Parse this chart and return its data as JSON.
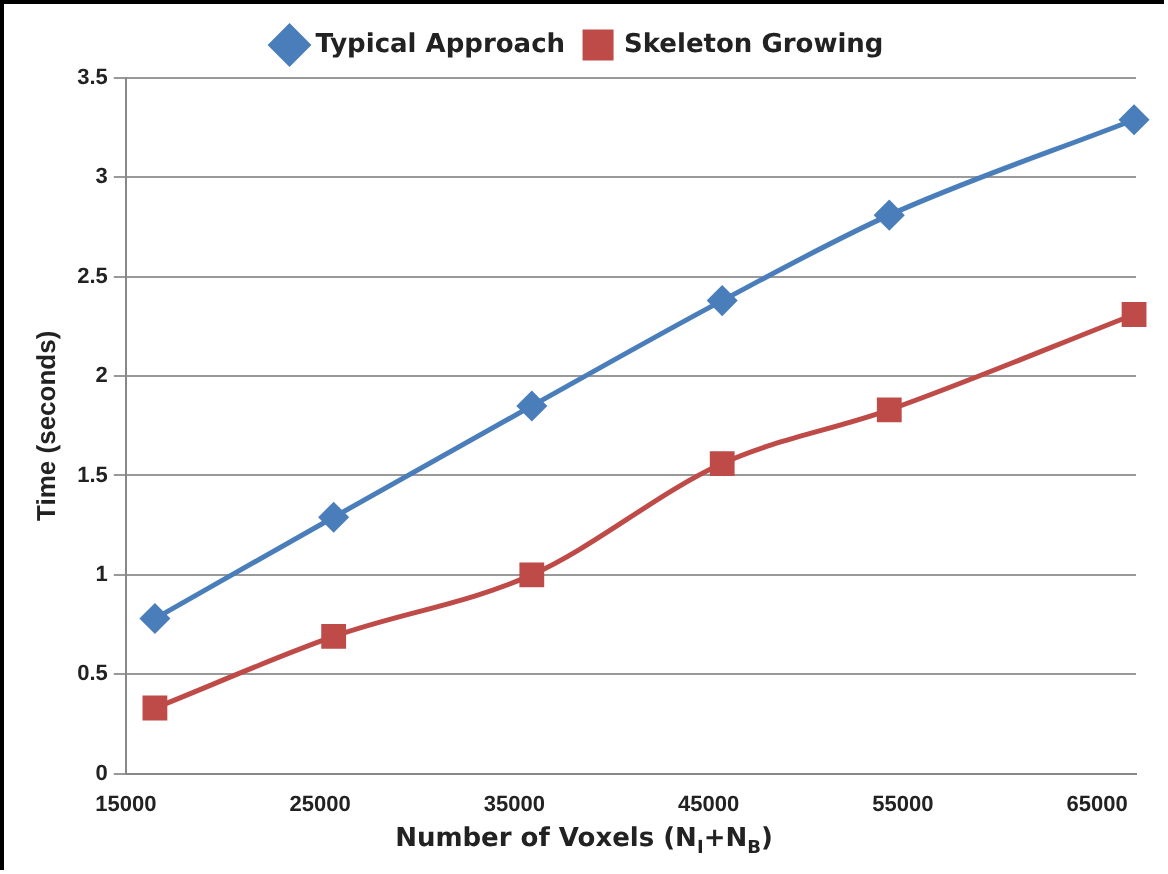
{
  "chart_data": {
    "type": "line",
    "xlabel": "Number of Voxels (N$_{I}$+N$_{B}$)",
    "ylabel": "Time (seconds)",
    "xlim": [
      15000,
      67000
    ],
    "xticks": [
      15000,
      25000,
      35000,
      45000,
      55000,
      65000
    ],
    "ylim": [
      0,
      3.5
    ],
    "yticks": [
      0,
      0.5,
      1,
      1.5,
      2,
      2.5,
      3,
      3.5
    ],
    "grid": "y",
    "legend": "top",
    "series": [
      {
        "name": "Typical Approach",
        "color": "#4a7ebb",
        "marker": "diamond",
        "x": [
          16500,
          25700,
          35900,
          45700,
          54300,
          66900
        ],
        "values": [
          0.78,
          1.29,
          1.85,
          2.38,
          2.81,
          3.29
        ]
      },
      {
        "name": "Skeleton Growing",
        "color": "#be4b48",
        "marker": "square",
        "x": [
          16500,
          25700,
          35900,
          45700,
          54300,
          66900
        ],
        "values": [
          0.33,
          0.69,
          1.0,
          1.56,
          1.83,
          2.31
        ]
      }
    ]
  }
}
